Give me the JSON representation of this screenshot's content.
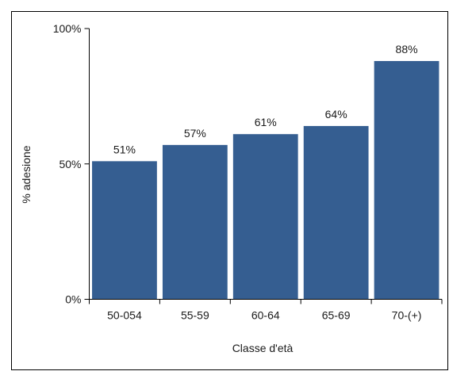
{
  "chart_data": {
    "type": "bar",
    "categories": [
      "50-054",
      "55-59",
      "60-64",
      "65-69",
      "70-(+)"
    ],
    "values": [
      51,
      57,
      61,
      64,
      88
    ],
    "data_labels": [
      "51%",
      "57%",
      "61%",
      "64%",
      "88%"
    ],
    "xlabel": "Classe d'età",
    "ylabel": "% adesione",
    "ylim": [
      0,
      100
    ],
    "yticks": [
      0,
      50,
      100
    ],
    "ytick_labels": [
      "0%",
      "50%",
      "100%"
    ],
    "bar_color": "#355E91",
    "grid": false,
    "legend": "none"
  }
}
